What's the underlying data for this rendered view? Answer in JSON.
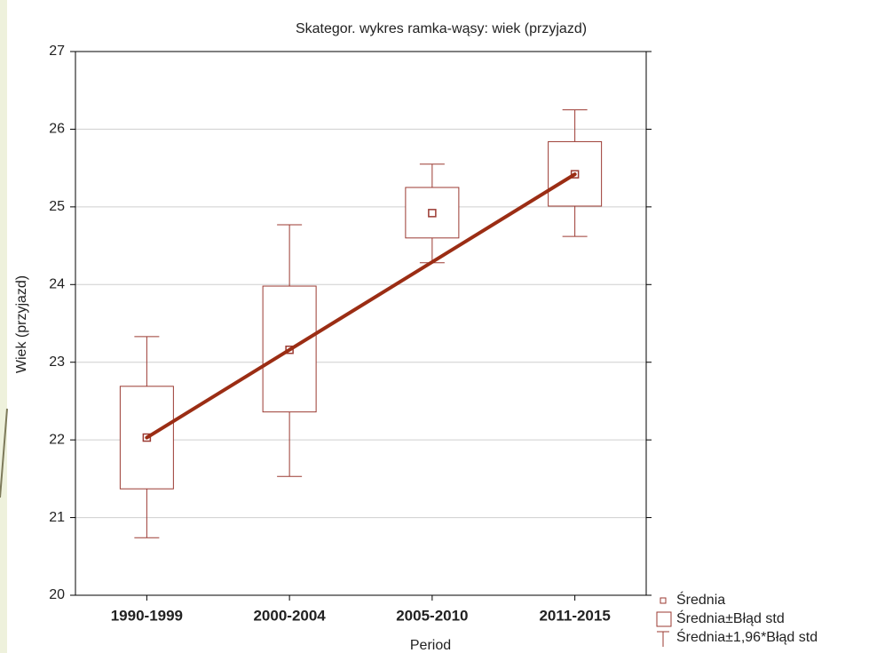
{
  "chart_data": {
    "type": "box",
    "title": "Skategor. wykres ramka-wąsy: wiek (przyjazd)",
    "x_label": "Period",
    "y_label": "Wiek (przyjazd)",
    "categories": [
      "1990-1999",
      "2000-2004",
      "2005-2010",
      "2011-2015"
    ],
    "mean": [
      22.03,
      23.16,
      24.92,
      25.42
    ],
    "se_low": [
      21.37,
      22.36,
      24.6,
      25.01
    ],
    "se_high": [
      22.69,
      23.98,
      25.25,
      25.84
    ],
    "ci_low": [
      20.74,
      21.53,
      24.28,
      24.62
    ],
    "ci_high": [
      23.33,
      24.77,
      25.55,
      26.25
    ],
    "color": "#9b3a32",
    "trend_line": {
      "color": "#9b2d14",
      "start": 22.03,
      "end": 25.42
    },
    "ylim": [
      20,
      27
    ],
    "yticks": [
      20,
      21,
      22,
      23,
      24,
      25,
      26,
      27
    ],
    "grid": true,
    "legend": [
      "Średnia",
      "Średnia±Błąd std",
      "Średnia±1,96*Błąd std"
    ]
  }
}
